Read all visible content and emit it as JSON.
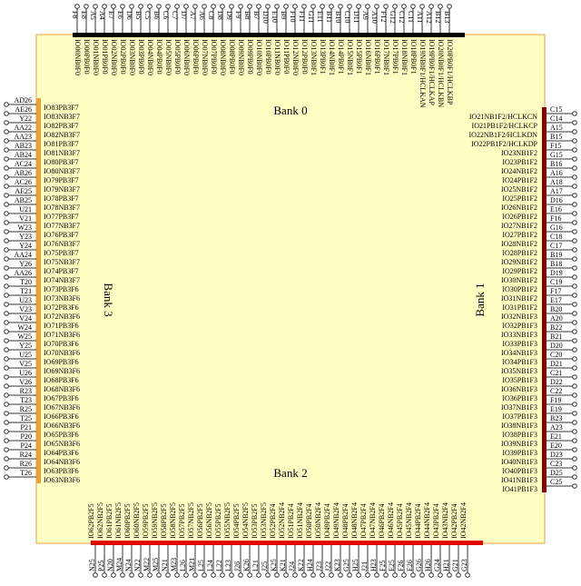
{
  "banks": [
    {
      "label": "Bank 0",
      "pins": [
        "F8",
        "E8",
        "A5",
        "A4",
        "E7",
        "E6",
        "D6",
        "B5",
        "C5",
        "B6",
        "C6",
        "C7",
        "D7",
        "A7",
        "A6",
        "C8",
        "D8",
        "D9",
        "F9",
        "B8",
        "B7",
        "D10",
        "E10",
        "B9",
        "F10",
        "F11",
        "G11",
        "E11",
        "B11",
        "B10",
        "C10",
        "D11",
        "A9",
        "A10",
        "F12",
        "G12",
        "C12",
        "C11",
        "A11",
        "A12",
        "B12",
        "B13"
      ],
      "signals": [
        "IO00NB0F0",
        "IO00PB0F0",
        "IO01NB0F0",
        "IO01PB0F0",
        "IO02NB0F0",
        "IO02PB0F0",
        "IO03NB0F0",
        "IO03PB0F0",
        "IO04NB0F0",
        "IO04PB0F0",
        "IO05NB0F0",
        "IO05PB0F0",
        "IO06NB0F0",
        "IO06PB0F0",
        "IO07NB0F0",
        "IO07PB0F0",
        "IO08NB0F0",
        "IO08PB0F0",
        "IO09NB0F0",
        "IO09PB0F0",
        "IO10NB0F0",
        "IO10PB0F0",
        "IO11NB0F0",
        "IO11PB0F0",
        "IO12NB0F0",
        "IO12PB0F0",
        "IO13NB0F1",
        "IO13PB0F1",
        "IO14NB0F1",
        "IO14PB0F1",
        "IO15NB0F1",
        "IO15PB0F1",
        "IO16NB0F1",
        "IO16PB0F1",
        "IO17NB0F1",
        "IO17PB0F1",
        "IO18NB0F1",
        "IO18PB0F1",
        "IO19NB0F1/HCLKAN",
        "IO19PB0F1/HCLKAP",
        "IO20NB0F1/HCLKBN",
        "IO20PB0F1/HCLKBP"
      ]
    },
    {
      "label": "Bank 1",
      "pins": [
        "C15",
        "C14",
        "A15",
        "B15",
        "F15",
        "G15",
        "B16",
        "A16",
        "A18",
        "A17",
        "D16",
        "E16",
        "F16",
        "G16",
        "C18",
        "C17",
        "B19",
        "B18",
        "D19",
        "C19",
        "F17",
        "E17",
        "B20",
        "A20",
        "B22",
        "B21",
        "D20",
        "C20",
        "D21",
        "C21",
        "D22",
        "C22",
        "F19",
        "E19",
        "B23",
        "A23",
        "E21",
        "E20",
        "D23",
        "C23",
        "D25",
        "C25"
      ],
      "signals": [
        "IO21NB1F2/HCLKCN",
        "IO21PB1F2/HCLKCP",
        "IO22NB1F2/HCLKDN",
        "IO22PB1F2/HCLKDP",
        "IO23NB1F2",
        "IO23PB1F2",
        "IO24NB1F2",
        "IO24PB1F2",
        "IO25NB1F2",
        "IO25PB1F2",
        "IO26NB1F2",
        "IO26PB1F2",
        "IO27NB1F2",
        "IO27PB1F2",
        "IO28NB1F2",
        "IO28PB1F2",
        "IO29NB1F2",
        "IO29PB1F2",
        "IO30NB1F2",
        "IO30PB1F2",
        "IO31NB1F2",
        "IO31PB1F2",
        "IO32NB1F3",
        "IO32PB1F3",
        "IO33NB1F3",
        "IO33PB1F3",
        "IO34NB1F3",
        "IO34PB1F3",
        "IO35NB1F3",
        "IO35PB1F3",
        "IO36NB1F3",
        "IO36PB1F3",
        "IO37NB1F3",
        "IO37PB1F3",
        "IO38NB1F3",
        "IO38PB1F3",
        "IO39NB1F3",
        "IO39PB1F3",
        "IO40NB1F3",
        "IO40PB1F3",
        "IO41NB1F3",
        "IO41PB1F3"
      ]
    },
    {
      "label": "Bank 2",
      "pins": [
        "N25",
        "P25",
        "N20",
        "M24",
        "N24",
        "N22",
        "M22",
        "M25",
        "N21",
        "M23",
        "L26",
        "M21",
        "L25",
        "L24",
        "L22",
        "L23",
        "J26",
        "K26",
        "L21",
        "J25",
        "K25",
        "K21",
        "J24",
        "K22",
        "H24",
        "J23",
        "J22",
        "K23",
        "G25",
        "H25",
        "J21",
        "H23",
        "F25",
        "E25",
        "F26",
        "E26",
        "G26",
        "H26",
        "G24",
        "H21",
        "G21",
        "G23"
      ],
      "signals": [
        "IO62PB2F5",
        "IO62NB2F5",
        "IO61PB2F5",
        "IO61NB2F5",
        "IO60PB2F5",
        "IO60NB2F5",
        "IO59PB2F5",
        "IO59NB2F5",
        "IO58PB2F5",
        "IO58NB2F5",
        "IO57PB2F5",
        "IO57NB2F5",
        "IO56PB2F5",
        "IO56NB2F5",
        "IO55PB2F5",
        "IO55NB2F5",
        "IO54PB2F5",
        "IO54NB2F5",
        "IO53PB2F5",
        "IO53NB2F5",
        "IO52PB2F4",
        "IO52NB2F4",
        "IO51PB2F4",
        "IO51NB2F4",
        "IO50PB2F4",
        "IO50NB2F4",
        "IO49PB2F4",
        "IO49NB2F4",
        "IO48PB2F4",
        "IO48NB2F4",
        "IO47PB2F4",
        "IO47NB2F4",
        "IO46PB2F4",
        "IO46NB2F4",
        "IO45PB2F4",
        "IO45NB2F4",
        "IO44PB2F4",
        "IO44NB2F4",
        "IO43PB2F4",
        "IO43NB2F4",
        "IO42PB2F4",
        "IO42NB2F4"
      ]
    },
    {
      "label": "Bank 3",
      "pins": [
        "AD26",
        "AE26",
        "Y22",
        "AA22",
        "AA23",
        "AB23",
        "AB24",
        "AC24",
        "AB26",
        "AC26",
        "AE25",
        "AB25",
        "U21",
        "V21",
        "W23",
        "Y23",
        "Y24",
        "AA24",
        "Y26",
        "AA26",
        "T20",
        "T21",
        "U23",
        "V23",
        "V24",
        "W24",
        "W25",
        "Y25",
        "U25",
        "V25",
        "U26",
        "V26",
        "R23",
        "T23",
        "R25",
        "T25",
        "P21",
        "P20",
        "P24",
        "R24",
        "R26",
        "T26"
      ],
      "signals": [
        "IO83PB3F7",
        "IO83NB3F7",
        "IO82PB3F7",
        "IO82NB3F7",
        "IO81PB3F7",
        "IO81NB3F7",
        "IO80PB3F7",
        "IO80NB3F7",
        "IO79PB3F7",
        "IO79NB3F7",
        "IO78PB3F7",
        "IO78NB3F7",
        "IO77PB3F7",
        "IO77NB3F7",
        "IO76PB3F7",
        "IO76NB3F7",
        "IO75PB3F7",
        "IO75NB3F7",
        "IO74PB3F7",
        "IO74NB3F7",
        "IO73PB3F6",
        "IO73NB3F6",
        "IO72PB3F6",
        "IO72NB3F6",
        "IO71PB3F6",
        "IO71NB3F6",
        "IO70PB3F6",
        "IO70NB3F6",
        "IO69PB3F6",
        "IO69NB3F6",
        "IO68PB3F6",
        "IO68NB3F6",
        "IO67PB3F6",
        "IO67NB3F6",
        "IO66PB3F6",
        "IO66NB3F6",
        "IO65PB3F6",
        "IO65NB3F6",
        "IO64PB3F6",
        "IO64NB3F6",
        "IO63PB3F6",
        "IO63NB3F6"
      ]
    }
  ]
}
